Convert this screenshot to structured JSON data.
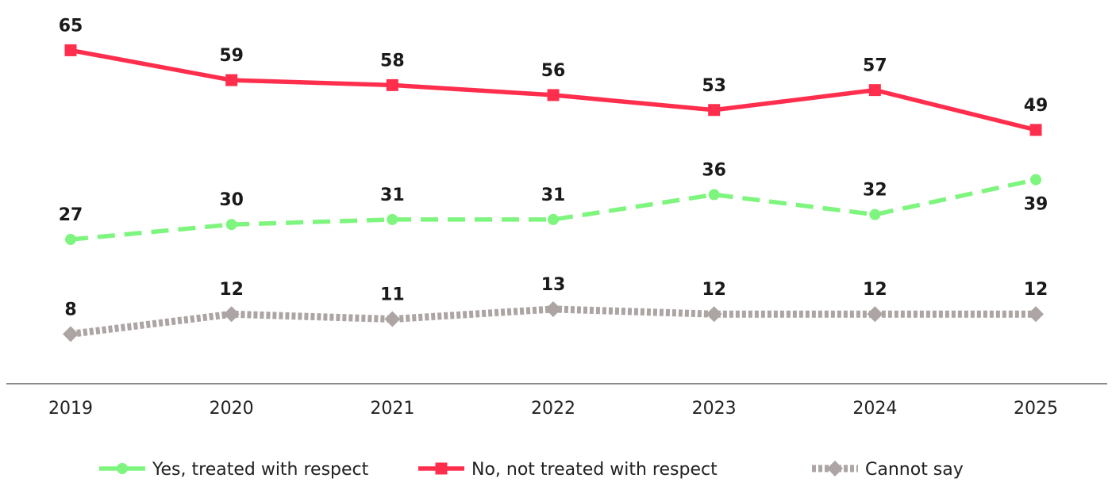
{
  "chart_data": {
    "type": "line",
    "categories": [
      "2019",
      "2020",
      "2021",
      "2022",
      "2023",
      "2024",
      "2025"
    ],
    "ylim": [
      0,
      70
    ],
    "grid": false,
    "legend_position": "bottom",
    "series": [
      {
        "name": "Yes, treated with respect",
        "values": [
          27,
          30,
          31,
          31,
          36,
          32,
          39
        ],
        "color": "#7ef57e",
        "style": "dashed",
        "marker": "circle"
      },
      {
        "name": "No, not treated with respect",
        "values": [
          65,
          59,
          58,
          56,
          53,
          57,
          49
        ],
        "color": "#ff2e4d",
        "style": "solid",
        "marker": "square"
      },
      {
        "name": "Cannot say",
        "values": [
          8,
          12,
          11,
          13,
          12,
          12,
          12
        ],
        "color": "#ada4a4",
        "style": "dotted",
        "marker": "diamond"
      }
    ]
  }
}
